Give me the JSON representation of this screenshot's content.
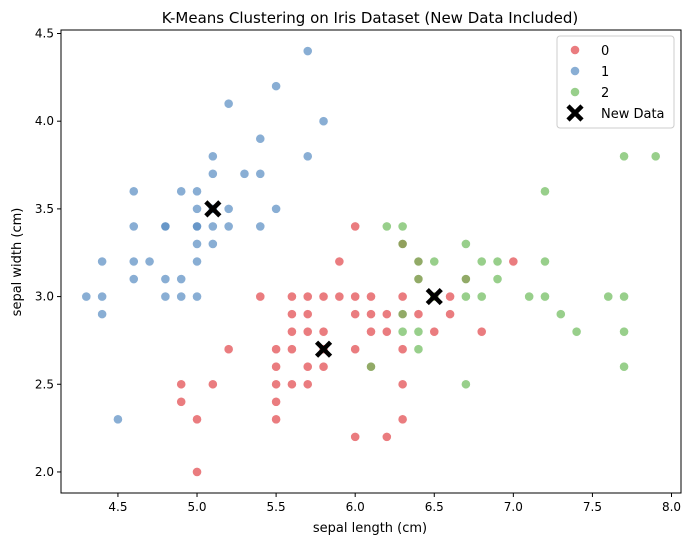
{
  "chart_data": {
    "type": "scatter",
    "title": "K-Means Clustering on Iris Dataset (New Data Included)",
    "xlabel": "sepal length (cm)",
    "ylabel": "sepal width (cm)",
    "xlim": [
      4.14,
      8.06
    ],
    "ylim": [
      1.88,
      4.52
    ],
    "xticks": [
      "4.5",
      "5.0",
      "5.5",
      "6.0",
      "6.5",
      "7.0",
      "7.5",
      "8.0"
    ],
    "yticks": [
      "2.0",
      "2.5",
      "3.0",
      "3.5",
      "4.0",
      "4.5"
    ],
    "grid": false,
    "legend_position": "top-right",
    "series": [
      {
        "name": "0",
        "color": "#e24a4e",
        "points": [
          [
            6.0,
            3.4
          ],
          [
            7.0,
            3.2
          ],
          [
            5.9,
            3.2
          ],
          [
            6.3,
            3.3
          ],
          [
            6.6,
            3.0
          ],
          [
            5.4,
            3.0
          ],
          [
            5.6,
            3.0
          ],
          [
            5.7,
            3.0
          ],
          [
            5.8,
            3.0
          ],
          [
            5.9,
            3.0
          ],
          [
            6.0,
            3.0
          ],
          [
            6.1,
            3.0
          ],
          [
            6.3,
            3.0
          ],
          [
            6.4,
            3.1
          ],
          [
            6.5,
            3.0
          ],
          [
            6.6,
            2.9
          ],
          [
            5.6,
            2.9
          ],
          [
            5.7,
            2.9
          ],
          [
            6.0,
            2.9
          ],
          [
            6.1,
            2.9
          ],
          [
            6.2,
            2.9
          ],
          [
            6.3,
            2.9
          ],
          [
            6.4,
            2.9
          ],
          [
            5.6,
            2.8
          ],
          [
            5.7,
            2.8
          ],
          [
            5.8,
            2.8
          ],
          [
            6.1,
            2.8
          ],
          [
            6.2,
            2.8
          ],
          [
            6.5,
            2.8
          ],
          [
            6.8,
            2.8
          ],
          [
            5.5,
            2.7
          ],
          [
            5.2,
            2.7
          ],
          [
            5.8,
            2.7
          ],
          [
            6.0,
            2.7
          ],
          [
            6.3,
            2.7
          ],
          [
            5.6,
            2.7
          ],
          [
            5.5,
            2.6
          ],
          [
            5.7,
            2.6
          ],
          [
            5.8,
            2.6
          ],
          [
            6.1,
            2.6
          ],
          [
            5.5,
            2.5
          ],
          [
            5.6,
            2.5
          ],
          [
            5.7,
            2.5
          ],
          [
            6.3,
            2.5
          ],
          [
            4.9,
            2.5
          ],
          [
            5.1,
            2.5
          ],
          [
            5.5,
            2.4
          ],
          [
            4.9,
            2.4
          ],
          [
            5.0,
            2.3
          ],
          [
            5.5,
            2.3
          ],
          [
            6.3,
            2.3
          ],
          [
            6.0,
            2.2
          ],
          [
            6.2,
            2.2
          ],
          [
            5.0,
            2.0
          ],
          [
            6.4,
            3.2
          ],
          [
            6.7,
            3.1
          ],
          [
            6.3,
            3.3
          ]
        ]
      },
      {
        "name": "1",
        "color": "#5c8fc3",
        "points": [
          [
            5.7,
            4.4
          ],
          [
            5.5,
            4.2
          ],
          [
            5.2,
            4.1
          ],
          [
            5.8,
            4.0
          ],
          [
            5.4,
            3.9
          ],
          [
            5.1,
            3.8
          ],
          [
            5.7,
            3.8
          ],
          [
            5.3,
            3.7
          ],
          [
            5.4,
            3.7
          ],
          [
            5.1,
            3.7
          ],
          [
            5.0,
            3.6
          ],
          [
            4.6,
            3.6
          ],
          [
            4.9,
            3.6
          ],
          [
            5.2,
            3.5
          ],
          [
            5.5,
            3.5
          ],
          [
            5.0,
            3.5
          ],
          [
            5.1,
            3.5
          ],
          [
            4.6,
            3.4
          ],
          [
            4.8,
            3.4
          ],
          [
            5.0,
            3.4
          ],
          [
            5.2,
            3.4
          ],
          [
            5.4,
            3.4
          ],
          [
            5.1,
            3.4
          ],
          [
            5.0,
            3.3
          ],
          [
            5.1,
            3.3
          ],
          [
            4.4,
            3.2
          ],
          [
            4.6,
            3.2
          ],
          [
            4.7,
            3.2
          ],
          [
            5.0,
            3.2
          ],
          [
            4.8,
            3.1
          ],
          [
            4.9,
            3.1
          ],
          [
            4.6,
            3.1
          ],
          [
            4.8,
            3.0
          ],
          [
            4.9,
            3.0
          ],
          [
            4.3,
            3.0
          ],
          [
            4.4,
            3.0
          ],
          [
            5.0,
            3.0
          ],
          [
            4.4,
            2.9
          ],
          [
            4.5,
            2.3
          ],
          [
            5.0,
            3.4
          ],
          [
            4.8,
            3.4
          ]
        ]
      },
      {
        "name": "2",
        "color": "#70bc5e",
        "points": [
          [
            7.7,
            3.8
          ],
          [
            7.9,
            3.8
          ],
          [
            7.2,
            3.6
          ],
          [
            6.2,
            3.4
          ],
          [
            6.3,
            3.4
          ],
          [
            6.7,
            3.3
          ],
          [
            6.3,
            3.3
          ],
          [
            6.4,
            3.2
          ],
          [
            6.5,
            3.2
          ],
          [
            6.8,
            3.2
          ],
          [
            6.9,
            3.2
          ],
          [
            7.2,
            3.2
          ],
          [
            6.7,
            3.1
          ],
          [
            6.9,
            3.1
          ],
          [
            6.4,
            3.1
          ],
          [
            6.7,
            3.0
          ],
          [
            6.8,
            3.0
          ],
          [
            7.1,
            3.0
          ],
          [
            7.2,
            3.0
          ],
          [
            7.6,
            3.0
          ],
          [
            7.7,
            3.0
          ],
          [
            6.5,
            3.0
          ],
          [
            7.3,
            2.9
          ],
          [
            6.4,
            2.8
          ],
          [
            6.3,
            2.8
          ],
          [
            7.4,
            2.8
          ],
          [
            7.7,
            2.8
          ],
          [
            6.4,
            2.7
          ],
          [
            6.1,
            2.6
          ],
          [
            7.7,
            2.6
          ],
          [
            6.7,
            2.5
          ],
          [
            6.3,
            2.9
          ]
        ]
      }
    ],
    "new_data": {
      "name": "New Data",
      "color": "#000000",
      "points": [
        [
          5.1,
          3.5
        ],
        [
          5.8,
          2.7
        ],
        [
          6.5,
          3.0
        ]
      ]
    }
  }
}
